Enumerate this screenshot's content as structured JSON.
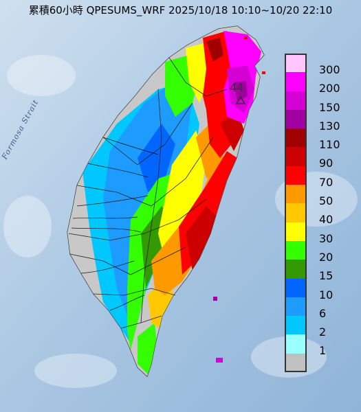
{
  "title": "累積60小時 QPESUMS_WRF 2025/10/18 10:10~10/20 22:10",
  "map_label": "Formosa Strait",
  "station_label": "44",
  "legend": [
    {
      "label": "300",
      "color": "#ffc6ff"
    },
    {
      "label": "200",
      "color": "#ff00ff"
    },
    {
      "label": "150",
      "color": "#d400d4"
    },
    {
      "label": "130",
      "color": "#a000a0"
    },
    {
      "label": "110",
      "color": "#a00000"
    },
    {
      "label": "90",
      "color": "#cc0000"
    },
    {
      "label": "70",
      "color": "#ff0000"
    },
    {
      "label": "50",
      "color": "#ff9900"
    },
    {
      "label": "40",
      "color": "#ffc800"
    },
    {
      "label": "30",
      "color": "#ffff00"
    },
    {
      "label": "20",
      "color": "#33ff00"
    },
    {
      "label": "15",
      "color": "#339900"
    },
    {
      "label": "10",
      "color": "#0066ff"
    },
    {
      "label": "6",
      "color": "#1e9bff"
    },
    {
      "label": "2",
      "color": "#00c8ff"
    },
    {
      "label": "1",
      "color": "#9bffff"
    },
    {
      "label": "",
      "color": "#c0c0c0"
    }
  ]
}
